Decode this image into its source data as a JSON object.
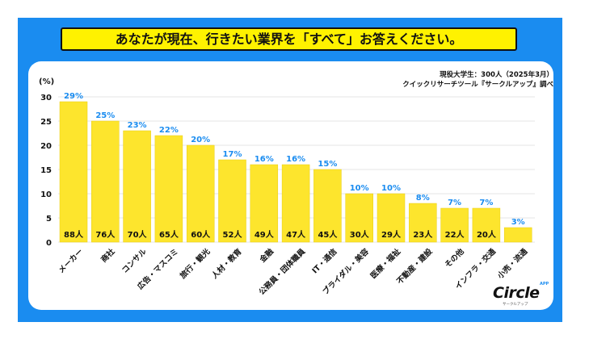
{
  "header": {
    "title": "あなたが現在、行きたい業界を「すべて」お答えください。"
  },
  "source": {
    "line1": "現役大学生：300人（2025年3月）",
    "line2": "クイックリサーチツール『サークルアップ』調べ"
  },
  "logo": {
    "word": "Circle",
    "superscript": "APP",
    "sub": "サークルアップ"
  },
  "colors": {
    "frame": "#1a8cf0",
    "bar": "#fde52d",
    "value_label": "#1a8cf0",
    "title_bg": "#fff200"
  },
  "chart_data": {
    "type": "bar",
    "title": "あなたが現在、行きたい業界を「すべて」お答えください。",
    "ylabel": "(%)",
    "ylim": [
      0,
      30
    ],
    "yticks": [
      0,
      5,
      10,
      15,
      20,
      25,
      30
    ],
    "grid": true,
    "categories": [
      "メーカー",
      "商社",
      "コンサル",
      "広告・マスコミ",
      "旅行・観光",
      "人材・教育",
      "金融",
      "公務員・団体職員",
      "IT・通信",
      "ブライダル・美容",
      "医療・福祉",
      "不動産・建設",
      "その他",
      "インフラ・交通",
      "小売・流通"
    ],
    "values": [
      29,
      25,
      23,
      22,
      20,
      17,
      16,
      16,
      15,
      10,
      10,
      8,
      7,
      7,
      3
    ],
    "value_labels": [
      "29%",
      "25%",
      "23%",
      "22%",
      "20%",
      "17%",
      "16%",
      "16%",
      "15%",
      "10%",
      "10%",
      "8%",
      "7%",
      "7%",
      "3%"
    ],
    "count_labels": [
      "88人",
      "76人",
      "70人",
      "65人",
      "60人",
      "52人",
      "49人",
      "47人",
      "45人",
      "30人",
      "29人",
      "23人",
      "22人",
      "20人",
      ""
    ]
  }
}
